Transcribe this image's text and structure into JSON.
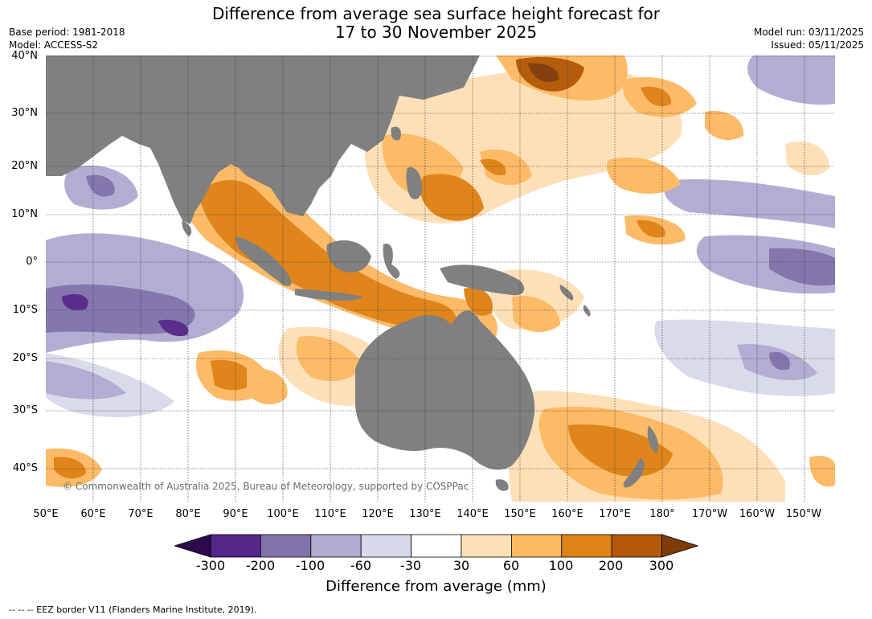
{
  "title_line1": "Difference from average sea surface height forecast for",
  "title_line2": "17 to 30 November 2025",
  "base_period": "Base period: 1981-2018",
  "model": "Model: ACCESS-S2",
  "model_run": "Model run: 03/11/2025",
  "issued": "Issued: 05/11/2025",
  "lat_labels": [
    "40°N",
    "30°N",
    "20°N",
    "10°N",
    "0°",
    "10°S",
    "20°S",
    "30°S",
    "40°S"
  ],
  "lon_labels": [
    "50°E",
    "60°E",
    "70°E",
    "80°E",
    "90°E",
    "100°E",
    "110°E",
    "120°E",
    "130°E",
    "140°E",
    "150°E",
    "160°E",
    "170°E",
    "180°",
    "170°W",
    "160°W",
    "150°W"
  ],
  "copyright": "© Commonwealth of Australia 2025, Bureau of Meteorology, supported by COSPPac",
  "colorbar": {
    "ticks": [
      "-300",
      "-200",
      "-100",
      "-60",
      "-30",
      "30",
      "60",
      "100",
      "200",
      "300"
    ],
    "label": "Difference from average (mm)",
    "colors": [
      "#2d0a4e",
      "#542788",
      "#8073ac",
      "#b2abd2",
      "#d8daeb",
      "#ffffff",
      "#fee0b6",
      "#fdb863",
      "#e08214",
      "#b35806",
      "#7f3b08"
    ]
  },
  "footnote": "--  --  -- EEZ border V11 (Flanders Marine Institute, 2019)."
}
